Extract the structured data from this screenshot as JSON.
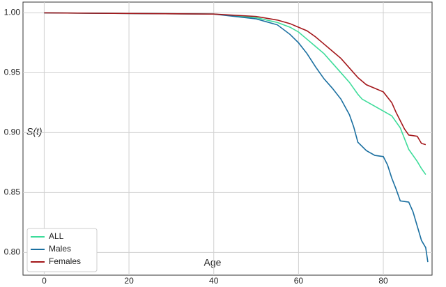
{
  "chart_data": {
    "type": "line",
    "x_label": "Age",
    "y_label": "S(t)",
    "xlim": [
      -5,
      91.5
    ],
    "ylim": [
      0.781,
      1.009
    ],
    "xticks": [
      0,
      20,
      40,
      60,
      80
    ],
    "yticks": [
      {
        "value": 0.8,
        "label": "0.80"
      },
      {
        "value": 0.85,
        "label": "0.85"
      },
      {
        "value": 0.9,
        "label": "0.90"
      },
      {
        "value": 0.95,
        "label": "0.95"
      },
      {
        "value": 1.0,
        "label": "1.00"
      }
    ],
    "grid": true,
    "legend": "lower left",
    "series": [
      {
        "name": "ALL",
        "color": "#3ddc9a",
        "x": [
          0,
          40,
          50,
          55,
          58,
          60,
          62,
          64,
          66,
          68,
          70,
          72,
          74,
          75,
          78,
          80,
          82,
          84,
          85,
          86,
          88,
          89,
          90
        ],
        "values": [
          1.0,
          0.999,
          0.996,
          0.992,
          0.988,
          0.984,
          0.978,
          0.972,
          0.966,
          0.958,
          0.95,
          0.942,
          0.932,
          0.928,
          0.922,
          0.918,
          0.914,
          0.904,
          0.895,
          0.886,
          0.876,
          0.87,
          0.865
        ]
      },
      {
        "name": "Males",
        "color": "#1a6fa0",
        "x": [
          0,
          40,
          50,
          55,
          58,
          60,
          62,
          64,
          66,
          68,
          70,
          72,
          73,
          74,
          76,
          78,
          80,
          81,
          82,
          83,
          84,
          86,
          87,
          88,
          89,
          90,
          90.5
        ],
        "values": [
          1.0,
          0.999,
          0.995,
          0.99,
          0.982,
          0.975,
          0.966,
          0.955,
          0.945,
          0.937,
          0.928,
          0.915,
          0.905,
          0.892,
          0.885,
          0.881,
          0.88,
          0.873,
          0.862,
          0.853,
          0.843,
          0.842,
          0.834,
          0.822,
          0.81,
          0.804,
          0.792
        ]
      },
      {
        "name": "Females",
        "color": "#a3161a",
        "x": [
          0,
          40,
          50,
          55,
          58,
          60,
          62,
          64,
          66,
          68,
          70,
          72,
          74,
          76,
          78,
          80,
          82,
          83,
          84,
          85,
          86,
          88,
          89,
          90
        ],
        "values": [
          1.0,
          0.999,
          0.997,
          0.994,
          0.991,
          0.988,
          0.985,
          0.98,
          0.974,
          0.968,
          0.962,
          0.954,
          0.946,
          0.94,
          0.937,
          0.934,
          0.925,
          0.917,
          0.91,
          0.903,
          0.898,
          0.897,
          0.891,
          0.89
        ]
      }
    ]
  }
}
